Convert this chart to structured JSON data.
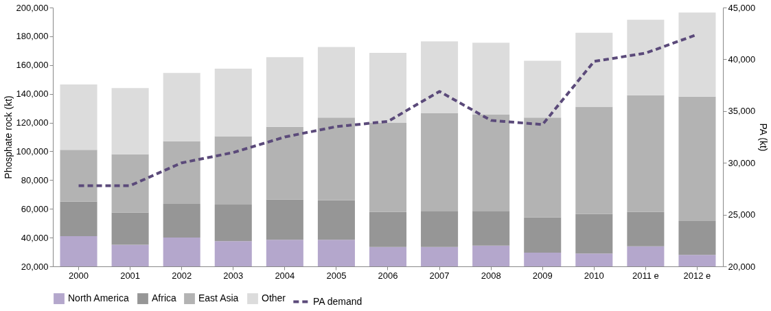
{
  "chart_data": {
    "type": "bar",
    "stacked": true,
    "ylabel": "Phosphate rock (kt)",
    "y2label": "PA (kt)",
    "categories": [
      "2000",
      "2001",
      "2002",
      "2003",
      "2004",
      "2005",
      "2006",
      "2007",
      "2008",
      "2009",
      "2010",
      "2011 e",
      "2012 e"
    ],
    "series": [
      {
        "name": "North America",
        "color": "#b4a7cc",
        "values": [
          41000,
          35000,
          40000,
          37500,
          38500,
          38500,
          33500,
          33500,
          34500,
          29500,
          29000,
          34000,
          28000
        ]
      },
      {
        "name": "Africa",
        "color": "#969696",
        "values": [
          24000,
          22500,
          23500,
          25500,
          28000,
          27500,
          24500,
          25000,
          24000,
          24500,
          27500,
          24000,
          23500
        ]
      },
      {
        "name": "East Asia",
        "color": "#b3b3b3",
        "values": [
          36000,
          40500,
          43500,
          47500,
          50500,
          57500,
          62000,
          68000,
          67000,
          69500,
          74500,
          81000,
          86500
        ]
      },
      {
        "name": "Other",
        "color": "#dcdcdc",
        "values": [
          45500,
          46000,
          47500,
          47000,
          48500,
          49000,
          48500,
          50000,
          50000,
          39500,
          51500,
          52500,
          58500
        ]
      },
      {
        "name": "PA demand",
        "type": "line",
        "axis": "y2",
        "color": "#5b4a7a",
        "line_style": "dashed",
        "values": [
          27800,
          27800,
          30000,
          31000,
          32500,
          33500,
          34000,
          36900,
          34100,
          33700,
          39800,
          40600,
          42400
        ]
      }
    ],
    "ylim": [
      20000,
      200000
    ],
    "yticks": [
      {
        "value": 20000,
        "label": "20,000"
      },
      {
        "value": 40000,
        "label": "40,000"
      },
      {
        "value": 60000,
        "label": "60,000"
      },
      {
        "value": 80000,
        "label": "80,000"
      },
      {
        "value": 100000,
        "label": "100,000"
      },
      {
        "value": 120000,
        "label": "120,000"
      },
      {
        "value": 140000,
        "label": "140,000"
      },
      {
        "value": 160000,
        "label": "160,000"
      },
      {
        "value": 180000,
        "label": "180,000"
      },
      {
        "value": 200000,
        "label": "200,000"
      }
    ],
    "y2lim": [
      20000,
      45000
    ],
    "y2ticks": [
      {
        "value": 20000,
        "label": "20,000"
      },
      {
        "value": 25000,
        "label": "25,000"
      },
      {
        "value": 30000,
        "label": "30,000"
      },
      {
        "value": 35000,
        "label": "35,000"
      },
      {
        "value": 40000,
        "label": "40,000"
      },
      {
        "value": 45000,
        "label": "45,000"
      }
    ],
    "legend": "bottom",
    "grid": false
  }
}
